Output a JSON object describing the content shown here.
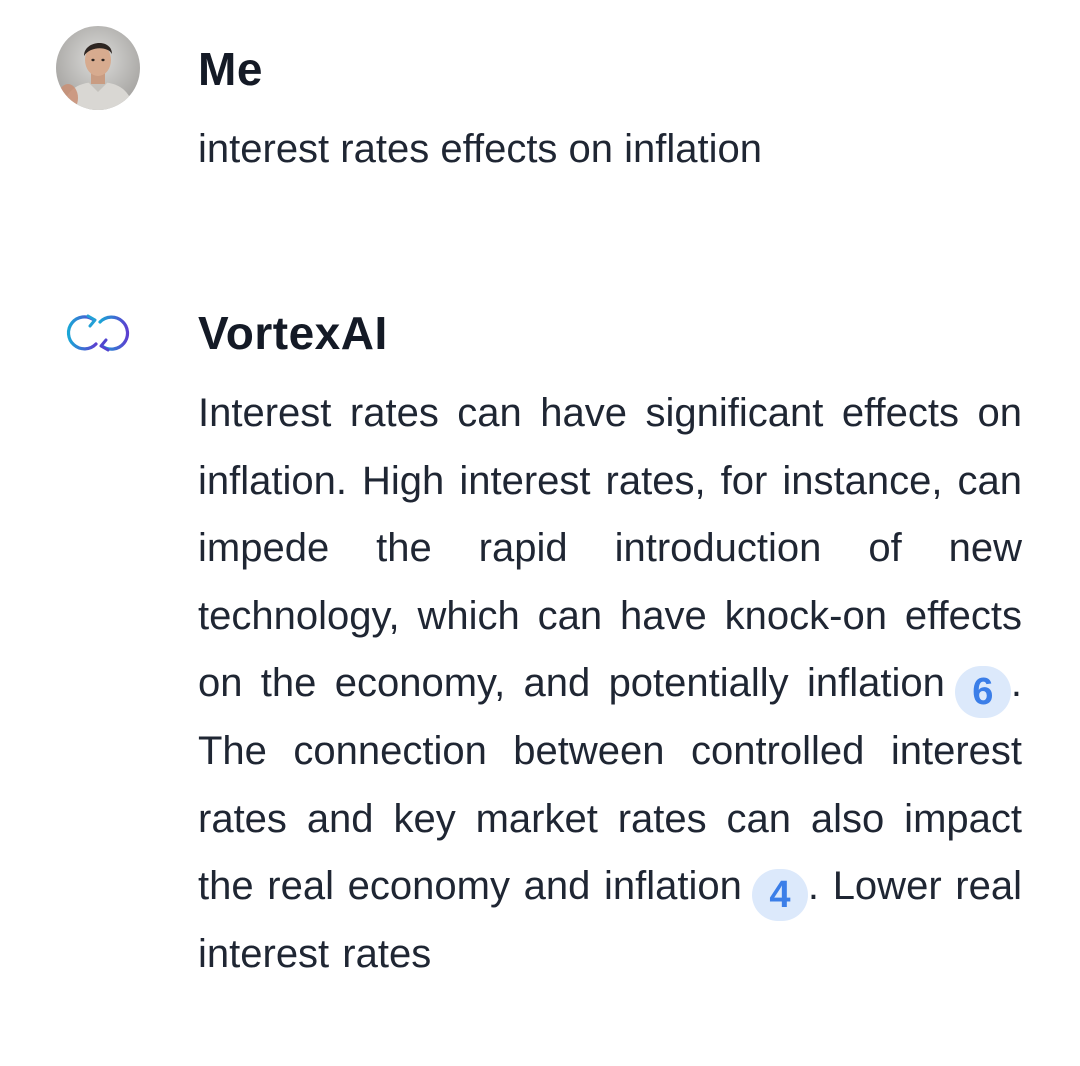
{
  "user_message": {
    "author": "Me",
    "text": "interest rates effects on inflation"
  },
  "assistant_message": {
    "author": "VortexAI",
    "segments": [
      "Interest rates can have significant effects on inflation. High interest rates, for instance, can impede the rapid introduction of new technology, which can have knock-on effects on the economy, and potentially inflation",
      ". The connection between controlled interest rates and key market rates can also impact the real economy and inflation",
      ". Lower real interest rates"
    ],
    "citations": [
      "6",
      "4"
    ]
  },
  "colors": {
    "citation_bg": "#dce9fb",
    "citation_text": "#3b7ee8",
    "logo_gradient_start": "#1aa6d6",
    "logo_gradient_end": "#5b3fd0"
  },
  "icons": {
    "user_avatar": "user-avatar-photo",
    "assistant_logo": "vortexai-infinity-arrows-icon"
  }
}
